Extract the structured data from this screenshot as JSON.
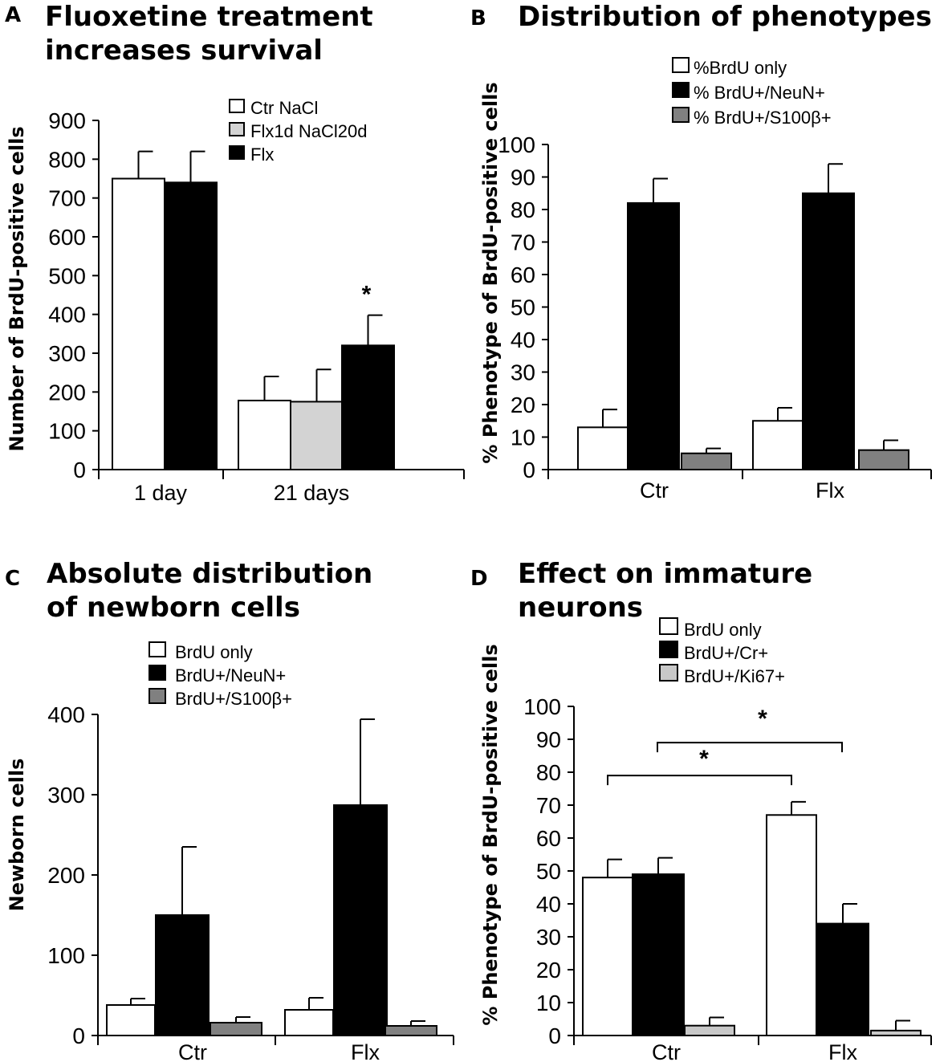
{
  "colors": {
    "white": "#ffffff",
    "black": "#000000",
    "light_gray": "#d3d3d3",
    "mid_gray": "#808080"
  },
  "panels": {
    "A": {
      "letter": "A",
      "title_line1": "Fluoxetine treatment",
      "title_line2": "increases survival"
    },
    "B": {
      "letter": "B",
      "title_line1": "Distribution of phenotypes"
    },
    "C": {
      "letter": "C",
      "title_line1": "Absolute distribution",
      "title_line2": "of newborn cells"
    },
    "D": {
      "letter": "D",
      "title_line1": "Effect on immature",
      "title_line2": "neurons"
    }
  },
  "chart_data": [
    {
      "id": "A",
      "type": "bar",
      "title": "Fluoxetine treatment increases survival",
      "ylabel": "Number of BrdU-positive cells",
      "xlabel": "",
      "ylim": [
        0,
        900
      ],
      "yticks": [
        0,
        100,
        200,
        300,
        400,
        500,
        600,
        700,
        800,
        900
      ],
      "groups": [
        {
          "label": "1 day",
          "bars": [
            {
              "series": "Ctr NaCl",
              "value": 750,
              "error": 70
            },
            {
              "series": "Flx",
              "value": 740,
              "error": 80
            }
          ]
        },
        {
          "label": "21 days",
          "bars": [
            {
              "series": "Ctr NaCl",
              "value": 178,
              "error": 62
            },
            {
              "series": "Flx1d NaCl20d",
              "value": 175,
              "error": 83
            },
            {
              "series": "Flx",
              "value": 320,
              "error": 78
            }
          ]
        }
      ],
      "legend": [
        {
          "name": "Ctr NaCl",
          "color": "#ffffff"
        },
        {
          "name": "Flx1d NaCl20d",
          "color": "#d3d3d3"
        },
        {
          "name": "Flx",
          "color": "#000000"
        }
      ],
      "legend_position": "top-right",
      "annotations": [
        {
          "text": "*",
          "group": "21 days",
          "series": "Flx"
        }
      ]
    },
    {
      "id": "B",
      "type": "bar",
      "title": "Distribution of phenotypes",
      "ylabel": "% Phenotype of BrdU-positive cells",
      "xlabel": "",
      "ylim": [
        0,
        100
      ],
      "yticks": [
        0,
        10,
        20,
        30,
        40,
        50,
        60,
        70,
        80,
        90,
        100
      ],
      "categories": [
        "Ctr",
        "Flx"
      ],
      "series": [
        {
          "name": "%BrdU only",
          "color": "#ffffff",
          "values": [
            13,
            15
          ],
          "errors": [
            5.5,
            4
          ]
        },
        {
          "name": "% BrdU+/NeuN+",
          "color": "#000000",
          "values": [
            82,
            85
          ],
          "errors": [
            7.5,
            9
          ]
        },
        {
          "name": "% BrdU+/S100β+",
          "color": "#808080",
          "values": [
            5,
            6
          ],
          "errors": [
            1.5,
            3
          ]
        }
      ],
      "legend_position": "top-right"
    },
    {
      "id": "C",
      "type": "bar",
      "title": "Absolute distribution of newborn cells",
      "ylabel": "Newborn cells",
      "xlabel": "",
      "ylim": [
        0,
        400
      ],
      "yticks": [
        0,
        100,
        200,
        300,
        400
      ],
      "categories": [
        "Ctr",
        "Flx"
      ],
      "series": [
        {
          "name": "BrdU only",
          "color": "#ffffff",
          "values": [
            38,
            32
          ],
          "errors": [
            8,
            15
          ]
        },
        {
          "name": "BrdU+/NeuN+",
          "color": "#000000",
          "values": [
            150,
            287
          ],
          "errors": [
            85,
            107
          ]
        },
        {
          "name": "BrdU+/S100β+",
          "color": "#808080",
          "values": [
            16,
            12
          ],
          "errors": [
            7,
            6
          ]
        }
      ],
      "legend_position": "top-right"
    },
    {
      "id": "D",
      "type": "bar",
      "title": "Effect on immature neurons",
      "ylabel": "% Phenotype of BrdU-positive cells",
      "xlabel": "",
      "ylim": [
        0,
        100
      ],
      "yticks": [
        0,
        10,
        20,
        30,
        40,
        50,
        60,
        70,
        80,
        90,
        100
      ],
      "categories": [
        "Ctr",
        "Flx"
      ],
      "series": [
        {
          "name": "BrdU only",
          "color": "#ffffff",
          "values": [
            48,
            67
          ],
          "errors": [
            5.5,
            4
          ]
        },
        {
          "name": "BrdU+/Cr+",
          "color": "#000000",
          "values": [
            49,
            34
          ],
          "errors": [
            5,
            6
          ]
        },
        {
          "name": "BrdU+/Ki67+",
          "color": "#c8c8c8",
          "values": [
            3,
            1.5
          ],
          "errors": [
            2.5,
            3
          ]
        }
      ],
      "legend_position": "top-right",
      "annotations": [
        {
          "text": "*",
          "type": "bracket",
          "from": "Ctr / BrdU only",
          "to": "Flx / BrdU only"
        },
        {
          "text": "*",
          "type": "bracket",
          "from": "Ctr / BrdU+/Cr+",
          "to": "Flx / BrdU+/Cr+"
        }
      ]
    }
  ]
}
